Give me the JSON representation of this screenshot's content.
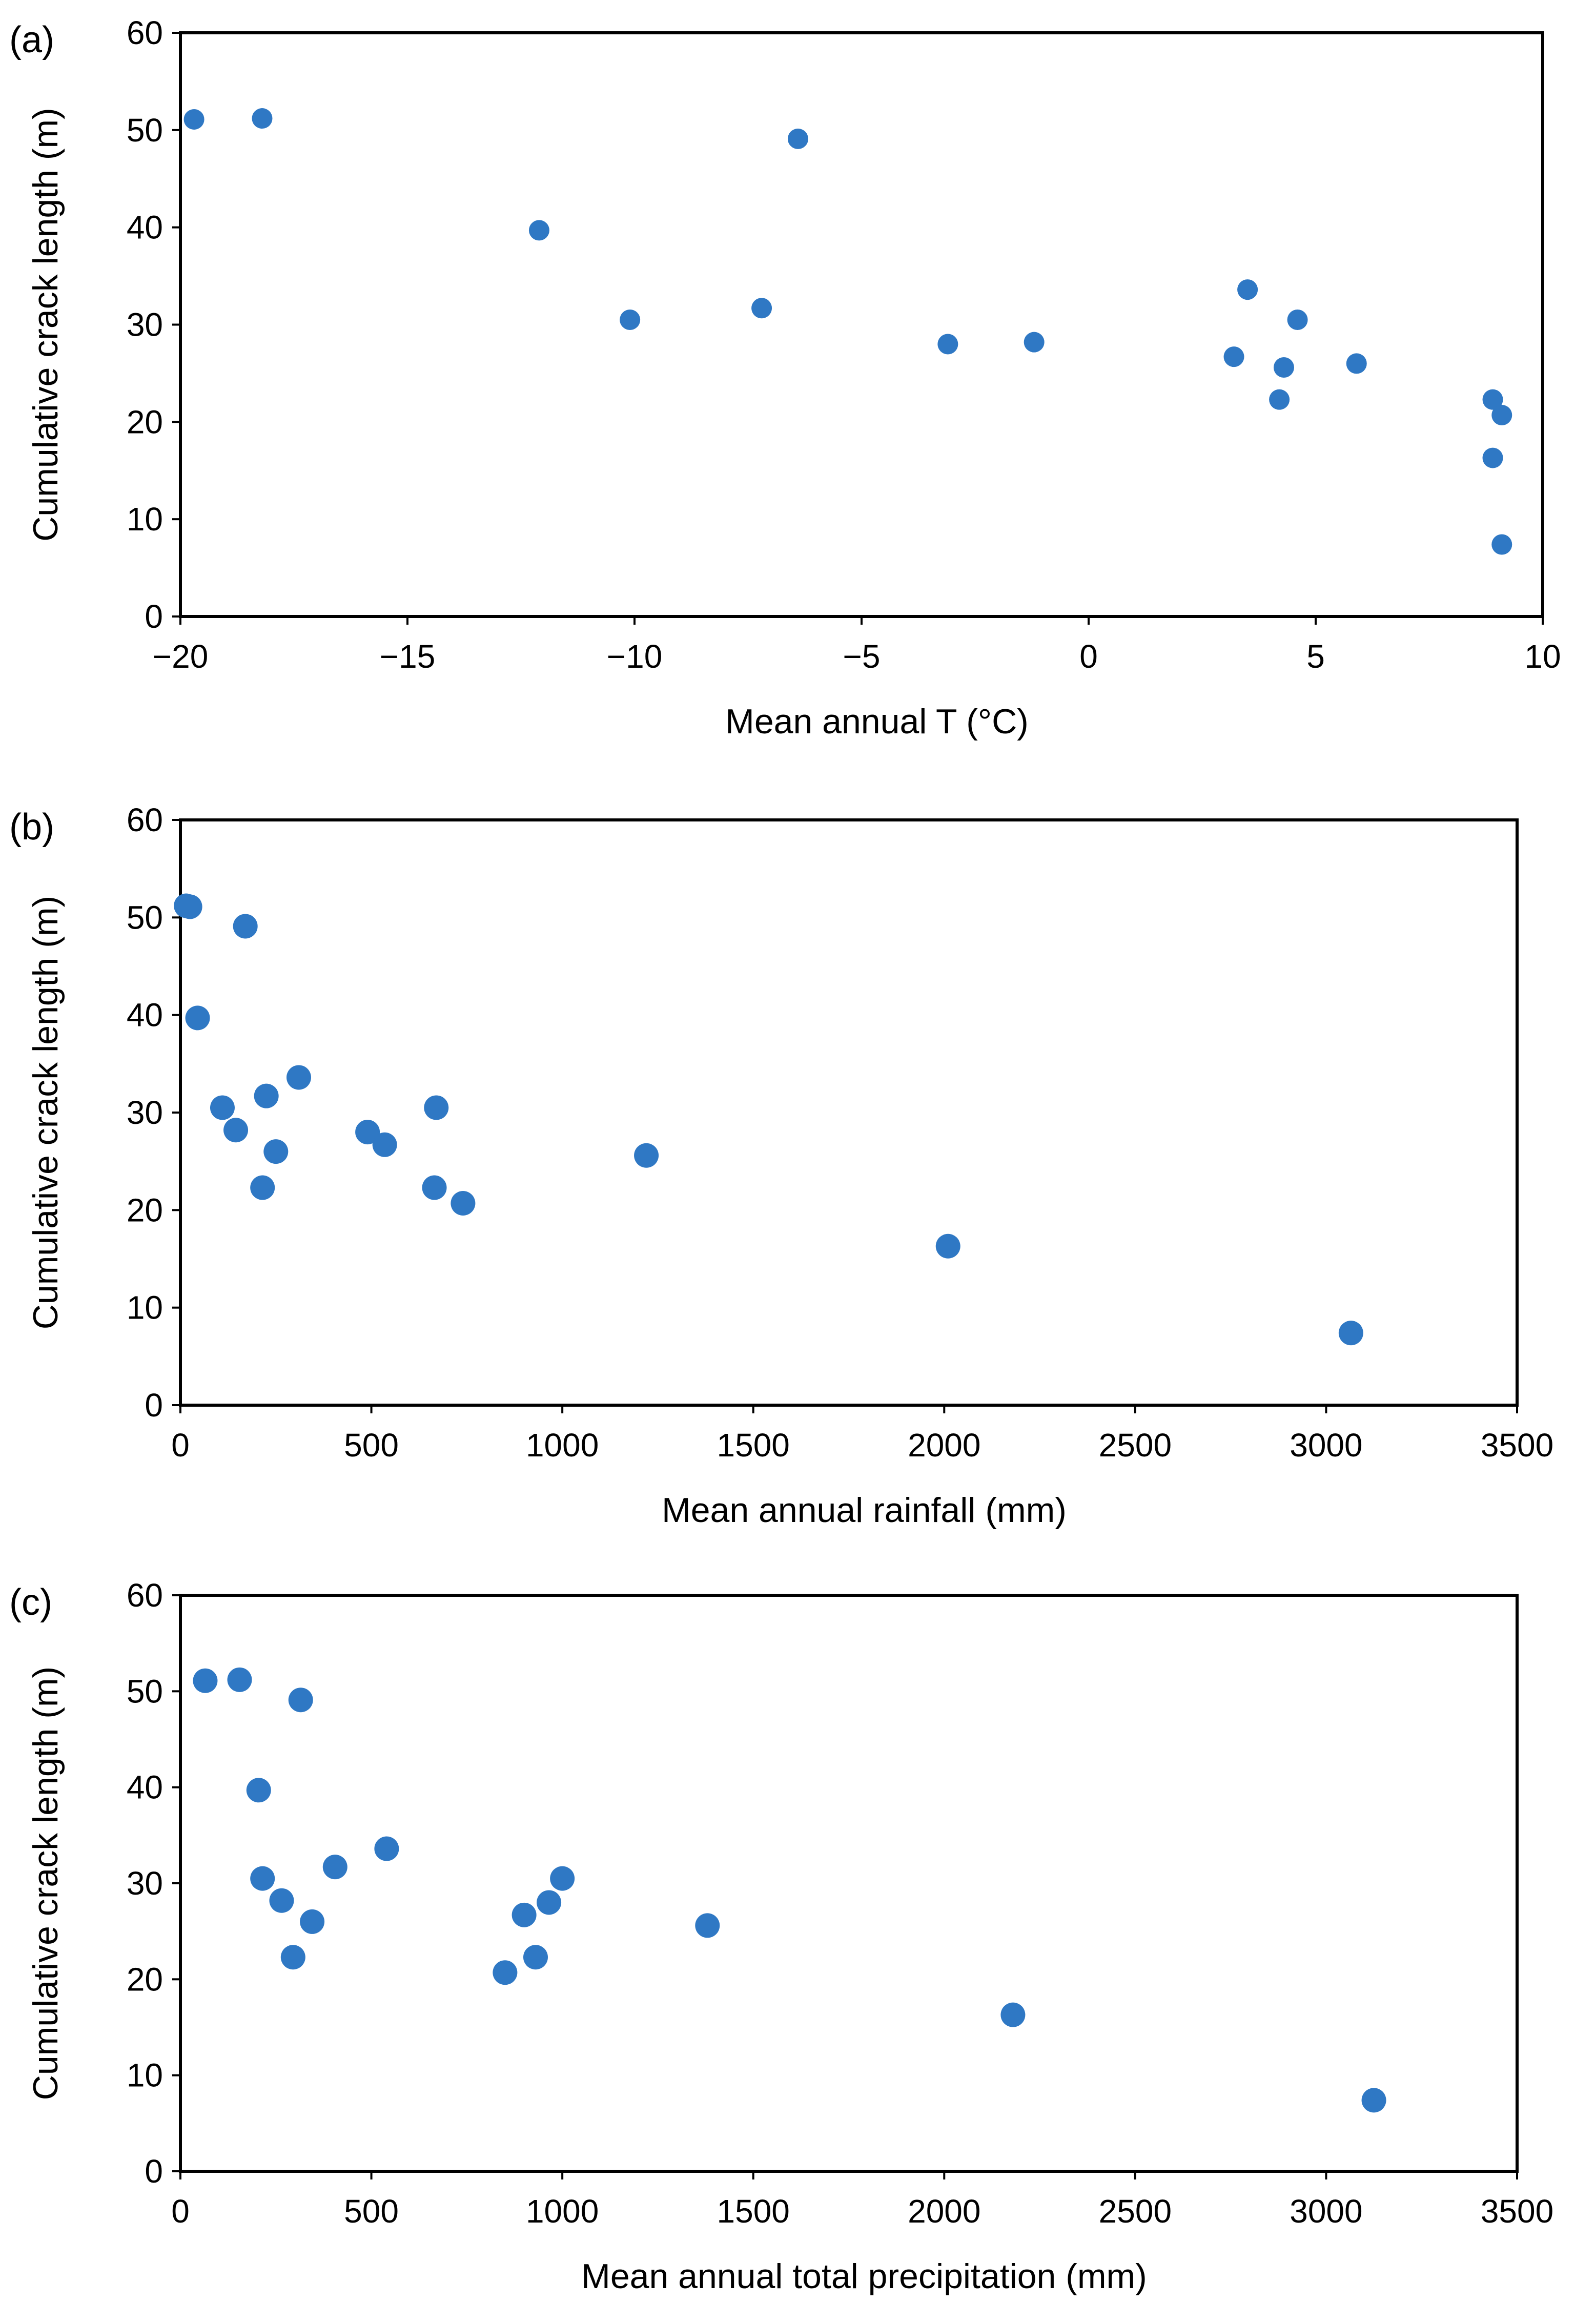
{
  "figure": {
    "panels": [
      "(a)",
      "(b)",
      "(c)"
    ]
  },
  "colors": {
    "marker": "#2f78c4",
    "axis": "#000000",
    "background": "#ffffff"
  },
  "chart_data": [
    {
      "type": "scatter",
      "panel_label": "(a)",
      "title": "",
      "xlabel": "Mean annual T (°C)",
      "ylabel": "Cumulative crack length (m)",
      "xlim": [
        -20,
        10
      ],
      "ylim": [
        0,
        60
      ],
      "xticks": [
        -20,
        -15,
        -10,
        -5,
        0,
        5,
        10
      ],
      "xtick_labels": [
        "−20",
        "−15",
        "−10",
        "−5",
        "0",
        "5",
        "10"
      ],
      "yticks": [
        0,
        10,
        20,
        30,
        40,
        50,
        60
      ],
      "ytick_labels": [
        "0",
        "10",
        "20",
        "30",
        "40",
        "50",
        "60"
      ],
      "grid": false,
      "points": [
        {
          "x": -19.7,
          "y": 51.1
        },
        {
          "x": -18.2,
          "y": 51.2
        },
        {
          "x": -12.1,
          "y": 39.7
        },
        {
          "x": -10.1,
          "y": 30.5
        },
        {
          "x": -7.2,
          "y": 31.7
        },
        {
          "x": -6.4,
          "y": 49.1
        },
        {
          "x": -3.1,
          "y": 28.0
        },
        {
          "x": -1.2,
          "y": 28.2
        },
        {
          "x": 3.2,
          "y": 26.7
        },
        {
          "x": 3.5,
          "y": 33.6
        },
        {
          "x": 4.2,
          "y": 22.3
        },
        {
          "x": 4.3,
          "y": 25.6
        },
        {
          "x": 4.6,
          "y": 30.5
        },
        {
          "x": 5.9,
          "y": 26.0
        },
        {
          "x": 8.9,
          "y": 22.3
        },
        {
          "x": 9.1,
          "y": 20.7
        },
        {
          "x": 8.9,
          "y": 16.3
        },
        {
          "x": 9.1,
          "y": 7.4
        }
      ]
    },
    {
      "type": "scatter",
      "panel_label": "(b)",
      "title": "",
      "xlabel": "Mean annual rainfall (mm)",
      "ylabel": "Cumulative crack length (m)",
      "xlim": [
        0,
        3500
      ],
      "ylim": [
        0,
        60
      ],
      "xticks": [
        0,
        500,
        1000,
        1500,
        2000,
        2500,
        3000,
        3500
      ],
      "xtick_labels": [
        "0",
        "500",
        "1000",
        "1500",
        "2000",
        "2500",
        "3000",
        "3500"
      ],
      "yticks": [
        0,
        10,
        20,
        30,
        40,
        50,
        60
      ],
      "ytick_labels": [
        "0",
        "10",
        "20",
        "30",
        "40",
        "50",
        "60"
      ],
      "grid": false,
      "points": [
        {
          "x": 15,
          "y": 51.2
        },
        {
          "x": 25,
          "y": 51.1
        },
        {
          "x": 170,
          "y": 49.1
        },
        {
          "x": 45,
          "y": 39.7
        },
        {
          "x": 110,
          "y": 30.5
        },
        {
          "x": 145,
          "y": 28.2
        },
        {
          "x": 225,
          "y": 31.7
        },
        {
          "x": 310,
          "y": 33.6
        },
        {
          "x": 250,
          "y": 26.0
        },
        {
          "x": 215,
          "y": 22.3
        },
        {
          "x": 490,
          "y": 28.0
        },
        {
          "x": 535,
          "y": 26.7
        },
        {
          "x": 670,
          "y": 30.5
        },
        {
          "x": 665,
          "y": 22.3
        },
        {
          "x": 740,
          "y": 20.7
        },
        {
          "x": 1220,
          "y": 25.6
        },
        {
          "x": 2010,
          "y": 16.3
        },
        {
          "x": 3065,
          "y": 7.4
        }
      ]
    },
    {
      "type": "scatter",
      "panel_label": "(c)",
      "title": "",
      "xlabel": "Mean annual total precipitation (mm)",
      "ylabel": "Cumulative crack length (m)",
      "xlim": [
        0,
        3500
      ],
      "ylim": [
        0,
        60
      ],
      "xticks": [
        0,
        500,
        1000,
        1500,
        2000,
        2500,
        3000,
        3500
      ],
      "xtick_labels": [
        "0",
        "500",
        "1000",
        "1500",
        "2000",
        "2500",
        "3000",
        "3500"
      ],
      "yticks": [
        0,
        10,
        20,
        30,
        40,
        50,
        60
      ],
      "ytick_labels": [
        "0",
        "10",
        "20",
        "30",
        "40",
        "50",
        "60"
      ],
      "grid": false,
      "points": [
        {
          "x": 65,
          "y": 51.1
        },
        {
          "x": 155,
          "y": 51.2
        },
        {
          "x": 315,
          "y": 49.1
        },
        {
          "x": 205,
          "y": 39.7
        },
        {
          "x": 215,
          "y": 30.5
        },
        {
          "x": 265,
          "y": 28.2
        },
        {
          "x": 405,
          "y": 31.7
        },
        {
          "x": 540,
          "y": 33.6
        },
        {
          "x": 345,
          "y": 26.0
        },
        {
          "x": 295,
          "y": 22.3
        },
        {
          "x": 900,
          "y": 26.7
        },
        {
          "x": 965,
          "y": 28.0
        },
        {
          "x": 1000,
          "y": 30.5
        },
        {
          "x": 930,
          "y": 22.3
        },
        {
          "x": 850,
          "y": 20.7
        },
        {
          "x": 1380,
          "y": 25.6
        },
        {
          "x": 2180,
          "y": 16.3
        },
        {
          "x": 3125,
          "y": 7.4
        }
      ]
    }
  ]
}
